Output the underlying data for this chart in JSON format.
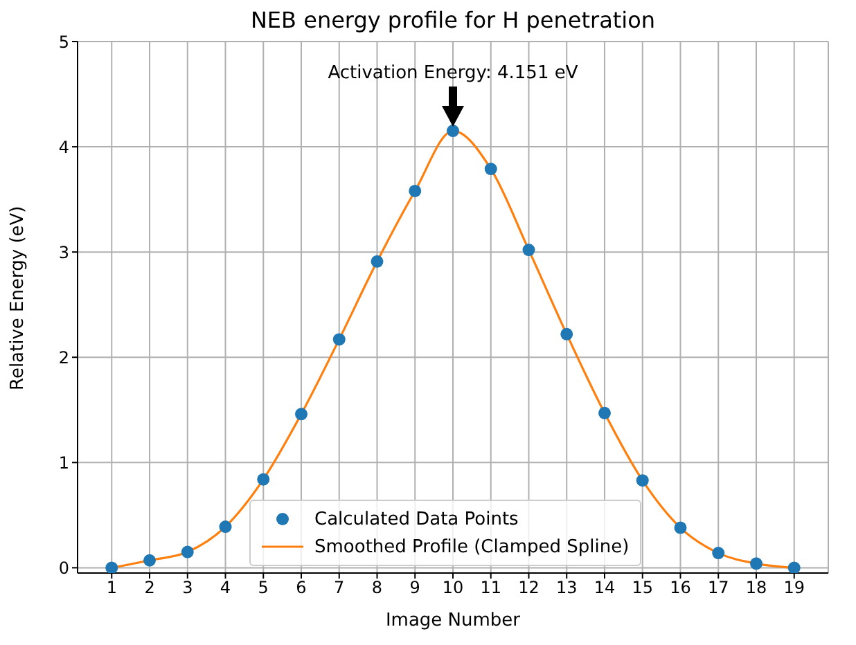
{
  "chart_data": {
    "type": "scatter",
    "title": "NEB energy profile for H penetration",
    "xlabel": "Image Number",
    "ylabel": "Relative Energy (eV)",
    "x": [
      1,
      2,
      3,
      4,
      5,
      6,
      7,
      8,
      9,
      10,
      11,
      12,
      13,
      14,
      15,
      16,
      17,
      18,
      19
    ],
    "series": [
      {
        "name": "Calculated Data Points",
        "marker": "circle",
        "color": "#1f77b4",
        "values": [
          0,
          0.07,
          0.15,
          0.39,
          0.84,
          1.46,
          2.17,
          2.91,
          3.58,
          4.151,
          3.79,
          3.02,
          2.22,
          1.47,
          0.83,
          0.38,
          0.14,
          0.04,
          0
        ]
      },
      {
        "name": "Smoothed Profile (Clamped Spline)",
        "type": "line",
        "marker": "none",
        "line_style": "solid",
        "color": "#ff7f0e",
        "values": [
          0,
          0.07,
          0.15,
          0.39,
          0.84,
          1.46,
          2.17,
          2.91,
          3.58,
          4.151,
          3.79,
          3.02,
          2.22,
          1.47,
          0.83,
          0.38,
          0.14,
          0.04,
          0
        ]
      }
    ],
    "xlim": [
      0.1,
      19.9
    ],
    "xticks": [
      1,
      2,
      3,
      4,
      5,
      6,
      7,
      8,
      9,
      10,
      11,
      12,
      13,
      14,
      15,
      16,
      17,
      18,
      19
    ],
    "ylim": [
      -0.05,
      5
    ],
    "yticks": [
      0,
      1,
      2,
      3,
      4,
      5
    ],
    "grid": true,
    "legend": "bottom",
    "annotations": [
      {
        "text": "Activation Energy: 4.151 eV",
        "x": 10,
        "y": 4.151
      }
    ]
  }
}
